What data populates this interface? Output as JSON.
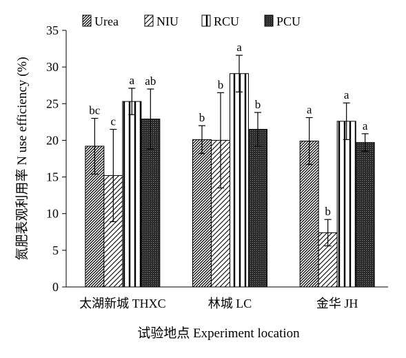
{
  "chart_data": {
    "type": "bar",
    "xlabel": "试验地点 Experiment location",
    "ylabel": "氮肥表观利用率 N use efficiency (%)",
    "ylim": [
      0,
      35
    ],
    "yticks": [
      0,
      5,
      10,
      15,
      20,
      25,
      30,
      35
    ],
    "grid": false,
    "legend_position": "top",
    "categories": [
      "太湖新城 THXC",
      "林城 LC",
      "金华 JH"
    ],
    "series": [
      {
        "name": "Urea",
        "pattern": "diagonal-dense",
        "values": [
          19.2,
          20.1,
          19.9
        ],
        "errors": [
          3.8,
          1.9,
          3.2
        ],
        "letters": [
          "bc",
          "b",
          "a"
        ]
      },
      {
        "name": "NIU",
        "pattern": "diagonal-sparse",
        "values": [
          15.2,
          20.0,
          7.4
        ],
        "errors": [
          6.3,
          6.5,
          1.8
        ],
        "letters": [
          "c",
          "b",
          "b"
        ]
      },
      {
        "name": "RCU",
        "pattern": "vertical-stripes",
        "values": [
          25.3,
          29.1,
          22.6
        ],
        "errors": [
          1.8,
          2.5,
          2.5
        ],
        "letters": [
          "a",
          "a",
          "a"
        ]
      },
      {
        "name": "PCU",
        "pattern": "dark-grid",
        "values": [
          22.9,
          21.5,
          19.7
        ],
        "errors": [
          4.1,
          2.3,
          1.2
        ],
        "letters": [
          "ab",
          "b",
          "a"
        ]
      }
    ]
  }
}
